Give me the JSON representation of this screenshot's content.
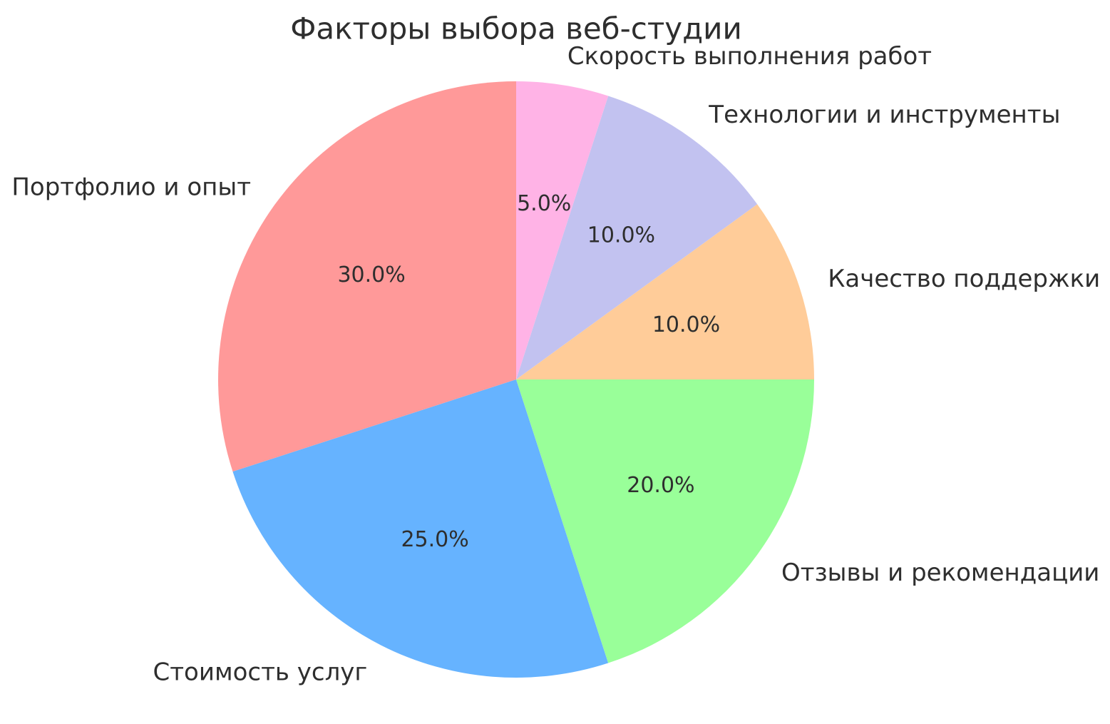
{
  "page": {
    "background_color": "#ffffff"
  },
  "chart_data": {
    "type": "pie",
    "title": "Факторы выбора веб-студии",
    "categories": [
      "Портфолио и опыт",
      "Стоимость услуг",
      "Отзывы и рекомендации",
      "Качество поддержки",
      "Технологии и инструменты",
      "Скорость выполнения работ"
    ],
    "values": [
      30.0,
      25.0,
      20.0,
      10.0,
      10.0,
      5.0
    ],
    "autopct_labels": [
      "30.0%",
      "25.0%",
      "20.0%",
      "10.0%",
      "10.0%",
      "5.0%"
    ],
    "colors": [
      "#ff9999",
      "#66b3ff",
      "#99ff99",
      "#ffcc99",
      "#c2c2f0",
      "#ffb3e6"
    ],
    "text_color": "#2e2e2e",
    "start_angle": 90,
    "counterclockwise": true,
    "label_distance": 1.1,
    "pct_distance": 0.6,
    "legend": "none",
    "axes": "none"
  }
}
